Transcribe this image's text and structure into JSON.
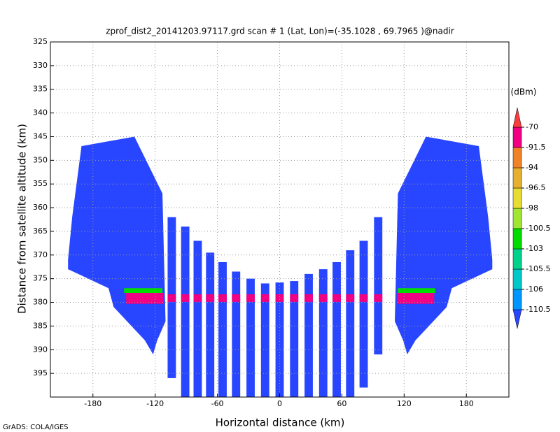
{
  "chart_data": {
    "type": "shaded",
    "title": "zprof_dist2_20141203.97117.grd   scan # 1   (Lat, Lon)=(-35.1028 , 69.7965 )@nadir",
    "x_label": "Horizontal distance (km)",
    "y_label": "Distance from satellite altitude (km)",
    "footer": "GrADS: COLA/IGES",
    "colorbar_unit": "(dBm)",
    "xlim": [
      -221,
      221
    ],
    "ylim": [
      400,
      325
    ],
    "xticks": [
      -180,
      -120,
      -60,
      0,
      60,
      120,
      180
    ],
    "yticks": [
      325,
      330,
      335,
      340,
      345,
      350,
      355,
      360,
      365,
      370,
      375,
      380,
      385,
      390,
      395
    ],
    "grid": true,
    "levels": [
      -110.5,
      -106,
      -105.5,
      -103,
      -100.5,
      -98,
      -96.5,
      -94,
      -91.5,
      -70
    ],
    "colors": [
      "#2846ff",
      "#0096ff",
      "#00c8c8",
      "#00d28c",
      "#00dc00",
      "#a0e632",
      "#e6dc32",
      "#e6af2d",
      "#f08228",
      "#f00082",
      "#fa3c3c"
    ],
    "regions": [
      {
        "value": -115,
        "points": [
          [
            -204,
            371
          ],
          [
            -200,
            362
          ],
          [
            -191,
            347
          ],
          [
            -140,
            345
          ],
          [
            -113,
            357
          ],
          [
            -110,
            384
          ],
          [
            -118,
            388
          ],
          [
            -122,
            391
          ],
          [
            -130,
            388
          ],
          [
            -160,
            381
          ],
          [
            -165,
            377
          ],
          [
            -204,
            373
          ]
        ]
      },
      {
        "value": -115,
        "points": [
          [
            205,
            371
          ],
          [
            201,
            362
          ],
          [
            192,
            347
          ],
          [
            141,
            345
          ],
          [
            114,
            357
          ],
          [
            111,
            384
          ],
          [
            119,
            388
          ],
          [
            123,
            391
          ],
          [
            131,
            388
          ],
          [
            161,
            381
          ],
          [
            166,
            377
          ],
          [
            205,
            373
          ]
        ]
      },
      {
        "value": -101,
        "points": [
          [
            -150,
            377
          ],
          [
            -113,
            377
          ],
          [
            -113,
            378
          ],
          [
            -150,
            378
          ]
        ]
      },
      {
        "value": -101,
        "points": [
          [
            114,
            377
          ],
          [
            150,
            377
          ],
          [
            150,
            378
          ],
          [
            114,
            378
          ]
        ]
      },
      {
        "value": -80,
        "points": [
          [
            -148,
            378
          ],
          [
            -112,
            378
          ],
          [
            -112,
            380.3
          ],
          [
            -148,
            380.3
          ]
        ]
      },
      {
        "value": -80,
        "points": [
          [
            113,
            378
          ],
          [
            149,
            378
          ],
          [
            149,
            380.3
          ],
          [
            113,
            380.3
          ]
        ]
      }
    ],
    "beam_value": -115,
    "beam_width": 8,
    "beams": [
      {
        "x": -104,
        "top": 362,
        "bottom": 396
      },
      {
        "x": -91,
        "top": 364,
        "bottom": 400
      },
      {
        "x": -79,
        "top": 367,
        "bottom": 400
      },
      {
        "x": -67,
        "top": 369.5,
        "bottom": 400
      },
      {
        "x": -55,
        "top": 371.5,
        "bottom": 400
      },
      {
        "x": -42,
        "top": 373.5,
        "bottom": 400
      },
      {
        "x": -28,
        "top": 375,
        "bottom": 400
      },
      {
        "x": -14,
        "top": 376,
        "bottom": 400
      },
      {
        "x": 0,
        "top": 375.8,
        "bottom": 400
      },
      {
        "x": 14,
        "top": 375.5,
        "bottom": 400
      },
      {
        "x": 28,
        "top": 374,
        "bottom": 400
      },
      {
        "x": 42,
        "top": 373,
        "bottom": 400
      },
      {
        "x": 55,
        "top": 371.5,
        "bottom": 400
      },
      {
        "x": 68,
        "top": 369,
        "bottom": 400
      },
      {
        "x": 81,
        "top": 367,
        "bottom": 398
      },
      {
        "x": 95,
        "top": 362,
        "bottom": 391
      }
    ],
    "band": {
      "value": -80,
      "top": 378.3,
      "bottom": 379.9
    }
  }
}
